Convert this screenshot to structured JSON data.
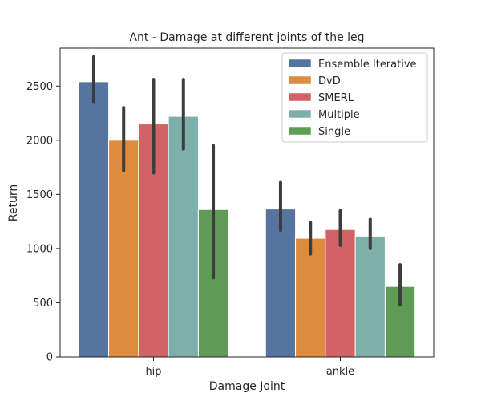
{
  "chart_data": {
    "type": "bar",
    "title": "Ant - Damage at different joints of the leg",
    "xlabel": "Damage Joint",
    "ylabel": "Return",
    "categories": [
      "hip",
      "ankle"
    ],
    "ylim": [
      0,
      2850
    ],
    "yticks": [
      0,
      500,
      1000,
      1500,
      2000,
      2500
    ],
    "grid": false,
    "legend_position": "top-right",
    "series": [
      {
        "name": "Ensemble Iterative",
        "color": "#5575a0",
        "values": [
          2540,
          1365
        ],
        "ci_low": [
          2350,
          1170
        ],
        "ci_high": [
          2770,
          1610
        ]
      },
      {
        "name": "DvD",
        "color": "#df8b3e",
        "values": [
          2000,
          1095
        ],
        "ci_low": [
          1720,
          950
        ],
        "ci_high": [
          2300,
          1240
        ]
      },
      {
        "name": "SMERL",
        "color": "#d26263",
        "values": [
          2150,
          1175
        ],
        "ci_low": [
          1700,
          1030
        ],
        "ci_high": [
          2560,
          1350
        ]
      },
      {
        "name": "Multiple",
        "color": "#7eb0ab",
        "values": [
          2220,
          1115
        ],
        "ci_low": [
          1920,
          1000
        ],
        "ci_high": [
          2560,
          1270
        ]
      },
      {
        "name": "Single",
        "color": "#5e9c56",
        "values": [
          1360,
          650
        ],
        "ci_low": [
          730,
          480
        ],
        "ci_high": [
          1950,
          850
        ]
      }
    ]
  }
}
